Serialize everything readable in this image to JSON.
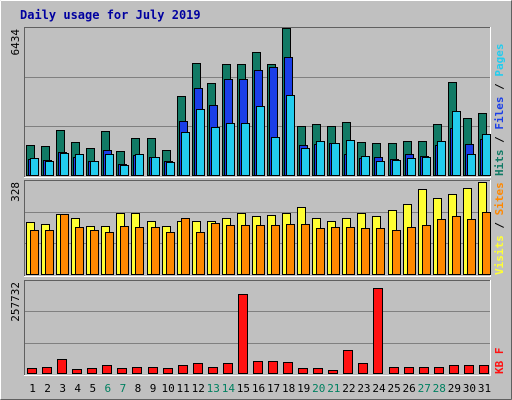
{
  "chart_data": {
    "type": "bar",
    "title": "Daily usage for July 2019",
    "categories": [
      "1",
      "2",
      "3",
      "4",
      "5",
      "6",
      "7",
      "8",
      "9",
      "10",
      "11",
      "12",
      "13",
      "14",
      "15",
      "16",
      "17",
      "18",
      "19",
      "20",
      "21",
      "22",
      "23",
      "24",
      "25",
      "26",
      "27",
      "28",
      "29",
      "30",
      "31"
    ],
    "weekend_days": [
      "6",
      "7",
      "13",
      "14",
      "20",
      "21",
      "27",
      "28"
    ],
    "colors": {
      "background": "#c0c0c0",
      "title": "#0000a0",
      "weekday_label": "#000000",
      "weekend_label": "#008060",
      "hits": "#117a65",
      "files": "#1a3ee8",
      "pages": "#22ccee",
      "visits": "#ffff33",
      "sites": "#ff8800",
      "kbf": "#ff1111"
    },
    "panels": [
      {
        "id": "hits_files_pages",
        "y_max_label": "6434",
        "ylim": [
          0,
          6434
        ],
        "legend": [
          {
            "label": "Pages",
            "color": "#22ccee"
          },
          {
            "label": "Files",
            "color": "#1a3ee8"
          },
          {
            "label": "Hits",
            "color": "#117a65"
          }
        ],
        "series": [
          {
            "name": "Hits",
            "values": [
              1350,
              1300,
              1980,
              1480,
              1190,
              1930,
              1080,
              1640,
              1640,
              1140,
              3470,
              4890,
              4000,
              4850,
              4850,
              5370,
              4850,
              6390,
              2150,
              2240,
              2150,
              2350,
              1460,
              1420,
              1410,
              1510,
              1510,
              2240,
              4080,
              2500,
              2700
            ]
          },
          {
            "name": "Files",
            "values": [
              750,
              700,
              1020,
              830,
              660,
              1120,
              500,
              910,
              830,
              630,
              2370,
              3800,
              3060,
              4210,
              4200,
              4580,
              4700,
              5140,
              1320,
              1400,
              1440,
              940,
              760,
              800,
              730,
              940,
              850,
              1360,
              2080,
              1380,
              1590
            ]
          },
          {
            "name": "Pages",
            "values": [
              770,
              640,
              990,
              930,
              640,
              950,
              490,
              950,
              810,
              600,
              1890,
              2890,
              2110,
              2300,
              2270,
              3010,
              1690,
              3500,
              1210,
              1510,
              1420,
              1560,
              870,
              660,
              700,
              780,
              800,
              1510,
              2820,
              970,
              1820
            ]
          }
        ]
      },
      {
        "id": "visits_sites",
        "y_max_label": "328",
        "ylim": [
          0,
          328
        ],
        "legend": [
          {
            "label": "Sites",
            "color": "#ff8800"
          },
          {
            "label": "Visits",
            "color": "#ffff33"
          }
        ],
        "series": [
          {
            "name": "Visits",
            "values": [
              182,
              176,
              210,
              197,
              168,
              168,
              215,
              215,
              187,
              168,
              187,
              187,
              187,
              196,
              215,
              205,
              208,
              215,
              235,
              196,
              187,
              196,
              215,
              205,
              225,
              245,
              296,
              267,
              278,
              300,
              322
            ]
          },
          {
            "name": "Sites",
            "values": [
              157,
              157,
              212,
              164,
              155,
              150,
              168,
              164,
              164,
              148,
              198,
              148,
              178,
              171,
              174,
              174,
              171,
              176,
              176,
              162,
              164,
              164,
              162,
              162,
              157,
              164,
              172,
              192,
              205,
              193,
              219
            ]
          }
        ]
      },
      {
        "id": "kbf",
        "y_max_label": "257732",
        "ylim": [
          0,
          257732
        ],
        "legend": [
          {
            "label": "KB F",
            "color": "#ff1111"
          }
        ],
        "series": [
          {
            "name": "KB F",
            "values": [
              16000,
              20000,
              40000,
              14000,
              16000,
              26000,
              16000,
              18000,
              20000,
              16000,
              26000,
              30000,
              18000,
              30000,
              220000,
              36000,
              36000,
              32000,
              16000,
              16000,
              10000,
              66000,
              30000,
              236000,
              20000,
              20000,
              18000,
              18000,
              26000,
              26000,
              26000
            ]
          }
        ]
      }
    ]
  }
}
